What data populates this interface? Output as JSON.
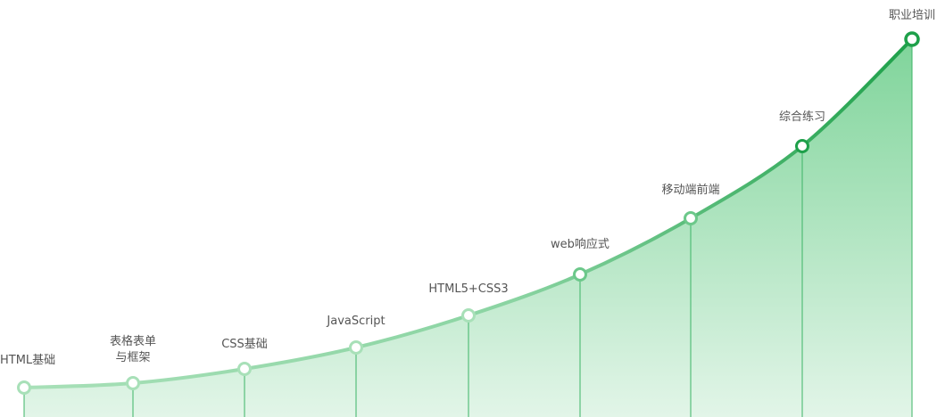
{
  "stages": [
    {
      "lines": [
        "HTML基础"
      ]
    },
    {
      "lines": [
        "表格表单",
        "与框架"
      ]
    },
    {
      "lines": [
        "CSS基础"
      ]
    },
    {
      "lines": [
        "JavaScript"
      ]
    },
    {
      "lines": [
        "HTML5+CSS3"
      ]
    },
    {
      "lines": [
        "web响应式"
      ]
    },
    {
      "lines": [
        "移动端前端"
      ]
    },
    {
      "lines": [
        "综合练习"
      ]
    },
    {
      "lines": [
        "职业培训"
      ]
    }
  ],
  "colors": {
    "line_light": "#a8e0b8",
    "line_dark": "#1ea04a",
    "fill_top": "#7fd49a",
    "fill_bottom": "#e2f5e8",
    "drop": "#3cb466",
    "label": "#555555"
  }
}
